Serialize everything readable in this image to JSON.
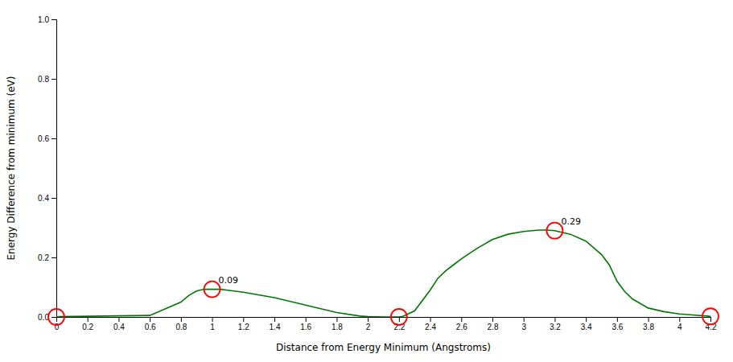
{
  "chart_data": {
    "type": "line",
    "x": [
      0.0,
      0.02,
      0.6,
      0.8,
      0.85,
      0.9,
      0.95,
      1.0,
      1.05,
      1.1,
      1.2,
      1.4,
      1.6,
      1.8,
      1.95,
      2.0,
      2.1,
      2.15,
      2.2,
      2.22,
      2.3,
      2.4,
      2.45,
      2.5,
      2.55,
      2.6,
      2.7,
      2.8,
      2.9,
      3.0,
      3.1,
      3.15,
      3.2,
      3.3,
      3.4,
      3.5,
      3.55,
      3.6,
      3.65,
      3.7,
      3.8,
      3.9,
      4.0,
      4.1,
      4.18,
      4.2
    ],
    "series": [
      {
        "color": "#007700",
        "values": [
          0.0,
          0.001,
          0.005,
          0.05,
          0.072,
          0.087,
          0.093,
          0.093,
          0.093,
          0.09,
          0.083,
          0.065,
          0.04,
          0.015,
          0.003,
          0.001,
          0.0,
          0.0,
          0.0,
          0.001,
          0.02,
          0.09,
          0.13,
          0.155,
          0.175,
          0.195,
          0.23,
          0.26,
          0.278,
          0.287,
          0.292,
          0.292,
          0.29,
          0.278,
          0.255,
          0.21,
          0.175,
          0.12,
          0.085,
          0.06,
          0.03,
          0.018,
          0.01,
          0.006,
          0.003,
          0.002
        ]
      }
    ],
    "x_label": "Distance from Energy Minimum (Angstroms)",
    "y_label": "Energy Difference from minimum (eV)",
    "xlim": [
      0,
      4.2
    ],
    "ylim": [
      0,
      1.0
    ],
    "xticks": [
      0,
      0.2,
      0.4,
      0.6,
      0.8,
      1.0,
      1.2,
      1.4,
      1.6,
      1.8,
      2.0,
      2.2,
      2.4,
      2.6,
      2.8,
      3.0,
      3.2,
      3.4,
      3.6,
      3.8,
      4.0,
      4.2
    ],
    "yticks": [
      {
        "value": 0,
        "label": "0.0"
      },
      0.2,
      0.4,
      0.6,
      0.8,
      {
        "value": 1.0,
        "label": "1.0"
      }
    ],
    "circled_points": [
      {
        "x": 0.0,
        "y": 0.0
      },
      {
        "x": 2.2,
        "y": 0.0
      },
      {
        "x": 4.2,
        "y": 0.002
      }
    ],
    "annotations": [
      {
        "x": 1.0,
        "y": 0.093,
        "text": "0.09"
      },
      {
        "x": 3.2,
        "y": 0.29,
        "text": "0.29"
      }
    ],
    "annotation_color": "red",
    "grid": false
  }
}
